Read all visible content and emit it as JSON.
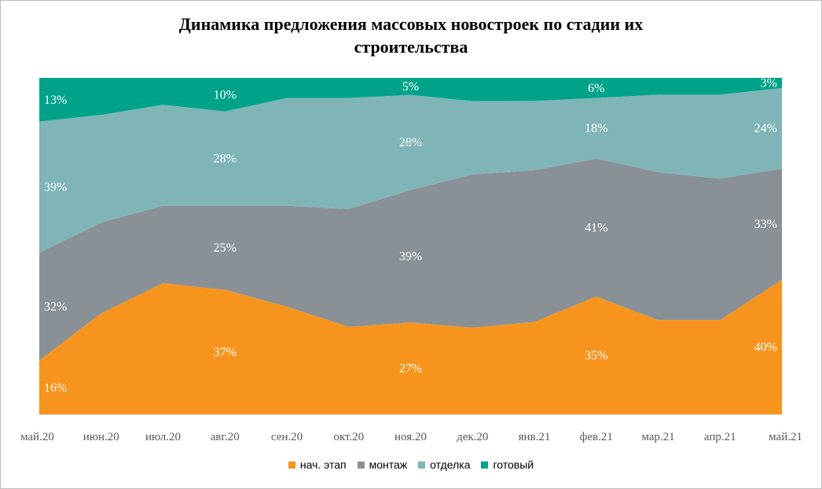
{
  "chart_data": {
    "type": "area",
    "stacked": true,
    "percent": true,
    "title": "Динамика предложения массовых новостроек по стадии их строительства",
    "title_lines": [
      "Динамика предложения массовых новостроек по стадии их",
      "строительства"
    ],
    "categories": [
      "май.20",
      "июн.20",
      "июл.20",
      "авг.20",
      "сен.20",
      "окт.20",
      "ноя.20",
      "дек.20",
      "янв.21",
      "фев.21",
      "мар.21",
      "апр.21",
      "май.21"
    ],
    "series": [
      {
        "name": "нач. этап",
        "color": "#F7941D",
        "values": [
          16,
          30,
          39,
          37,
          32,
          26,
          27,
          26,
          28,
          35,
          28,
          28,
          40
        ]
      },
      {
        "name": "монтаж",
        "color": "#8A9196",
        "values": [
          32,
          27,
          23,
          25,
          30,
          35,
          39,
          46,
          46,
          41,
          44,
          42,
          33
        ]
      },
      {
        "name": "отделка",
        "color": "#7FB5B7",
        "values": [
          39,
          32,
          30,
          28,
          32,
          33,
          28,
          22,
          21,
          18,
          23,
          25,
          24
        ]
      },
      {
        "name": "готовый",
        "color": "#00A38A",
        "values": [
          13,
          11,
          8,
          10,
          6,
          6,
          5,
          7,
          7,
          6,
          5,
          5,
          3
        ]
      }
    ],
    "data_labels": [
      {
        "series": 0,
        "index": 0,
        "text": "16%"
      },
      {
        "series": 0,
        "index": 3,
        "text": "37%"
      },
      {
        "series": 0,
        "index": 6,
        "text": "27%"
      },
      {
        "series": 0,
        "index": 9,
        "text": "35%"
      },
      {
        "series": 0,
        "index": 12,
        "text": "40%"
      },
      {
        "series": 1,
        "index": 0,
        "text": "32%"
      },
      {
        "series": 1,
        "index": 3,
        "text": "25%"
      },
      {
        "series": 1,
        "index": 6,
        "text": "39%"
      },
      {
        "series": 1,
        "index": 9,
        "text": "41%"
      },
      {
        "series": 1,
        "index": 12,
        "text": "33%"
      },
      {
        "series": 2,
        "index": 0,
        "text": "39%"
      },
      {
        "series": 2,
        "index": 3,
        "text": "28%"
      },
      {
        "series": 2,
        "index": 6,
        "text": "28%"
      },
      {
        "series": 2,
        "index": 9,
        "text": "18%"
      },
      {
        "series": 2,
        "index": 12,
        "text": "24%"
      },
      {
        "series": 3,
        "index": 0,
        "text": "13%"
      },
      {
        "series": 3,
        "index": 3,
        "text": "10%"
      },
      {
        "series": 3,
        "index": 6,
        "text": "5%"
      },
      {
        "series": 3,
        "index": 9,
        "text": "6%"
      },
      {
        "series": 3,
        "index": 12,
        "text": "3%"
      }
    ],
    "ylim": [
      0,
      100
    ],
    "grid": false,
    "legend_position": "bottom"
  }
}
